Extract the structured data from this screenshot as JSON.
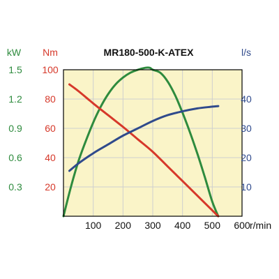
{
  "chart_data": {
    "type": "line",
    "title": "MR180-500-K-ATEX",
    "xlabel": "r/min",
    "x_ticks": [
      "100",
      "200",
      "300",
      "400",
      "500",
      "600"
    ],
    "xlim": [
      0,
      600
    ],
    "grid": true,
    "background_color": "#faf4c8",
    "axes": {
      "power": {
        "unit": "kW",
        "color": "#2e8b3e",
        "ticks": [
          "1.5",
          "1.2",
          "0.9",
          "0.6",
          "0.3"
        ],
        "ylim": [
          0,
          1.5
        ]
      },
      "torque": {
        "unit": "Nm",
        "color": "#d6382a",
        "ticks": [
          "100",
          "80",
          "60",
          "40",
          "20"
        ],
        "ylim": [
          0,
          100
        ]
      },
      "flow": {
        "unit": "l/s",
        "color": "#2f4a8c",
        "ticks": [
          "40",
          "30",
          "20",
          "10"
        ],
        "ylim": [
          0,
          50
        ]
      }
    },
    "series": [
      {
        "axis": "power",
        "color": "#2e8b3e",
        "x": [
          0,
          25,
          50,
          75,
          100,
          125,
          150,
          175,
          200,
          225,
          250,
          275,
          290,
          300,
          325,
          350,
          375,
          400,
          425,
          450,
          475,
          500,
          520
        ],
        "y": [
          0.0,
          0.3,
          0.56,
          0.77,
          0.96,
          1.12,
          1.25,
          1.35,
          1.42,
          1.47,
          1.5,
          1.52,
          1.52,
          1.5,
          1.47,
          1.38,
          1.24,
          1.06,
          0.86,
          0.64,
          0.4,
          0.15,
          0.0
        ]
      },
      {
        "axis": "torque",
        "color": "#d6382a",
        "x": [
          20,
          50,
          100,
          150,
          200,
          250,
          300,
          350,
          400,
          450,
          500,
          520
        ],
        "y": [
          90,
          85.5,
          77,
          69,
          61,
          52.5,
          44,
          34,
          24,
          14,
          4,
          0
        ]
      },
      {
        "axis": "flow",
        "color": "#2f4a8c",
        "x": [
          20,
          50,
          100,
          150,
          200,
          250,
          300,
          350,
          400,
          450,
          500,
          520
        ],
        "y": [
          15.5,
          18,
          21.5,
          24.5,
          27.5,
          30,
          32.5,
          34.5,
          35.8,
          36.8,
          37.4,
          37.6
        ]
      }
    ]
  }
}
